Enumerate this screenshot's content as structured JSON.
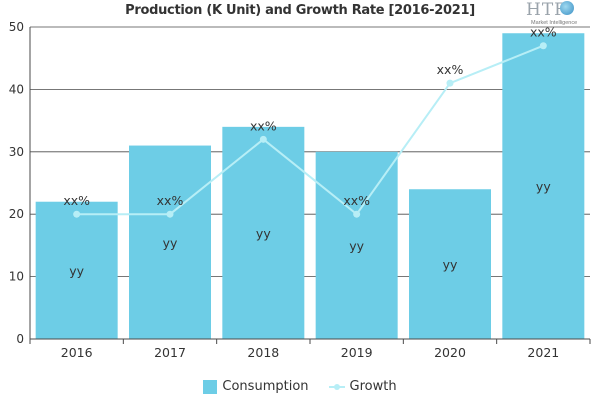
{
  "colors": {
    "bar": "#6dcde6",
    "line": "#b7eef6",
    "grid": "#4a4a4a",
    "text": "#333333"
  },
  "logo": {
    "main": "HTF",
    "sub": "Market Intelligence"
  },
  "chart_data": {
    "type": "bar",
    "title": "Production (K Unit) and Growth Rate [2016-2021]",
    "categories": [
      "2016",
      "2017",
      "2018",
      "2019",
      "2020",
      "2021"
    ],
    "ylim": [
      0,
      50
    ],
    "yticks": [
      0,
      10,
      20,
      30,
      40,
      50
    ],
    "grid": true,
    "legend_position": "bottom",
    "series": [
      {
        "name": "Consumption",
        "type": "bar",
        "values": [
          22,
          31,
          34,
          30,
          24,
          49
        ],
        "labels": [
          "yy",
          "yy",
          "yy",
          "yy",
          "yy",
          "yy"
        ]
      },
      {
        "name": "Growth",
        "type": "line",
        "values": [
          20,
          20,
          32,
          20,
          41,
          47
        ],
        "labels": [
          "xx%",
          "xx%",
          "xx%",
          "xx%",
          "xx%",
          "xx%"
        ]
      }
    ]
  }
}
